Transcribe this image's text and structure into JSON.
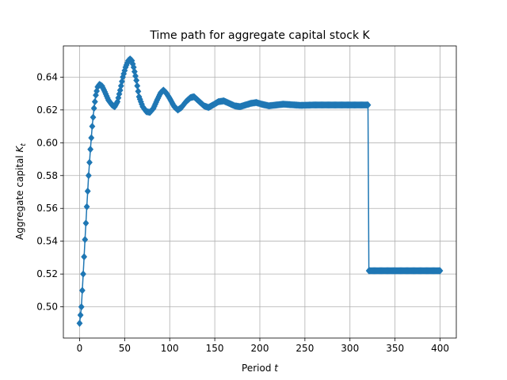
{
  "chart_data": {
    "type": "line",
    "title": "Time path for aggregate capital stock K",
    "xlabel": "Period",
    "xlabel_symbol": "t",
    "ylabel": "Aggregate capital",
    "ylabel_symbol": "K",
    "ylabel_subscript": "t",
    "xlim": [
      -18,
      418
    ],
    "ylim": [
      0.481,
      0.659
    ],
    "xticks": [
      0,
      50,
      100,
      150,
      200,
      250,
      300,
      350,
      400
    ],
    "xtick_labels": [
      "0",
      "50",
      "100",
      "150",
      "200",
      "250",
      "300",
      "350",
      "400"
    ],
    "yticks": [
      0.5,
      0.52,
      0.54,
      0.56,
      0.58,
      0.6,
      0.62,
      0.64
    ],
    "ytick_labels": [
      "0.50",
      "0.52",
      "0.54",
      "0.56",
      "0.58",
      "0.60",
      "0.62",
      "0.64"
    ],
    "grid": true,
    "marker": "diamond",
    "color": "#1f77b4",
    "periods": 401,
    "series": [
      {
        "name": "",
        "keypoints": [
          [
            0,
            0.49
          ],
          [
            2,
            0.5
          ],
          [
            4,
            0.52
          ],
          [
            6,
            0.541
          ],
          [
            8,
            0.561
          ],
          [
            10,
            0.58
          ],
          [
            12,
            0.596
          ],
          [
            14,
            0.61
          ],
          [
            16,
            0.621
          ],
          [
            18,
            0.629
          ],
          [
            20,
            0.634
          ],
          [
            22,
            0.6355
          ],
          [
            25,
            0.6345
          ],
          [
            28,
            0.631
          ],
          [
            32,
            0.626
          ],
          [
            36,
            0.623
          ],
          [
            39,
            0.622
          ],
          [
            42,
            0.625
          ],
          [
            45,
            0.632
          ],
          [
            48,
            0.64
          ],
          [
            51,
            0.646
          ],
          [
            54,
            0.65
          ],
          [
            56,
            0.651
          ],
          [
            58,
            0.65
          ],
          [
            60,
            0.646
          ],
          [
            63,
            0.638
          ],
          [
            66,
            0.628
          ],
          [
            70,
            0.622
          ],
          [
            74,
            0.619
          ],
          [
            78,
            0.6185
          ],
          [
            82,
            0.621
          ],
          [
            86,
            0.626
          ],
          [
            90,
            0.6305
          ],
          [
            93,
            0.632
          ],
          [
            96,
            0.6305
          ],
          [
            100,
            0.627
          ],
          [
            105,
            0.622
          ],
          [
            109,
            0.62
          ],
          [
            113,
            0.6215
          ],
          [
            118,
            0.625
          ],
          [
            123,
            0.6275
          ],
          [
            127,
            0.628
          ],
          [
            132,
            0.6255
          ],
          [
            138,
            0.6225
          ],
          [
            143,
            0.6215
          ],
          [
            148,
            0.623
          ],
          [
            154,
            0.625
          ],
          [
            160,
            0.6255
          ],
          [
            166,
            0.624
          ],
          [
            172,
            0.6225
          ],
          [
            178,
            0.622
          ],
          [
            184,
            0.623
          ],
          [
            190,
            0.624
          ],
          [
            196,
            0.6245
          ],
          [
            202,
            0.6235
          ],
          [
            210,
            0.6225
          ],
          [
            218,
            0.623
          ],
          [
            226,
            0.6235
          ],
          [
            234,
            0.6232
          ],
          [
            245,
            0.6228
          ],
          [
            260,
            0.623
          ],
          [
            280,
            0.623
          ],
          [
            300,
            0.623
          ],
          [
            320,
            0.623
          ],
          [
            321,
            0.522
          ],
          [
            400,
            0.522
          ]
        ]
      }
    ]
  }
}
